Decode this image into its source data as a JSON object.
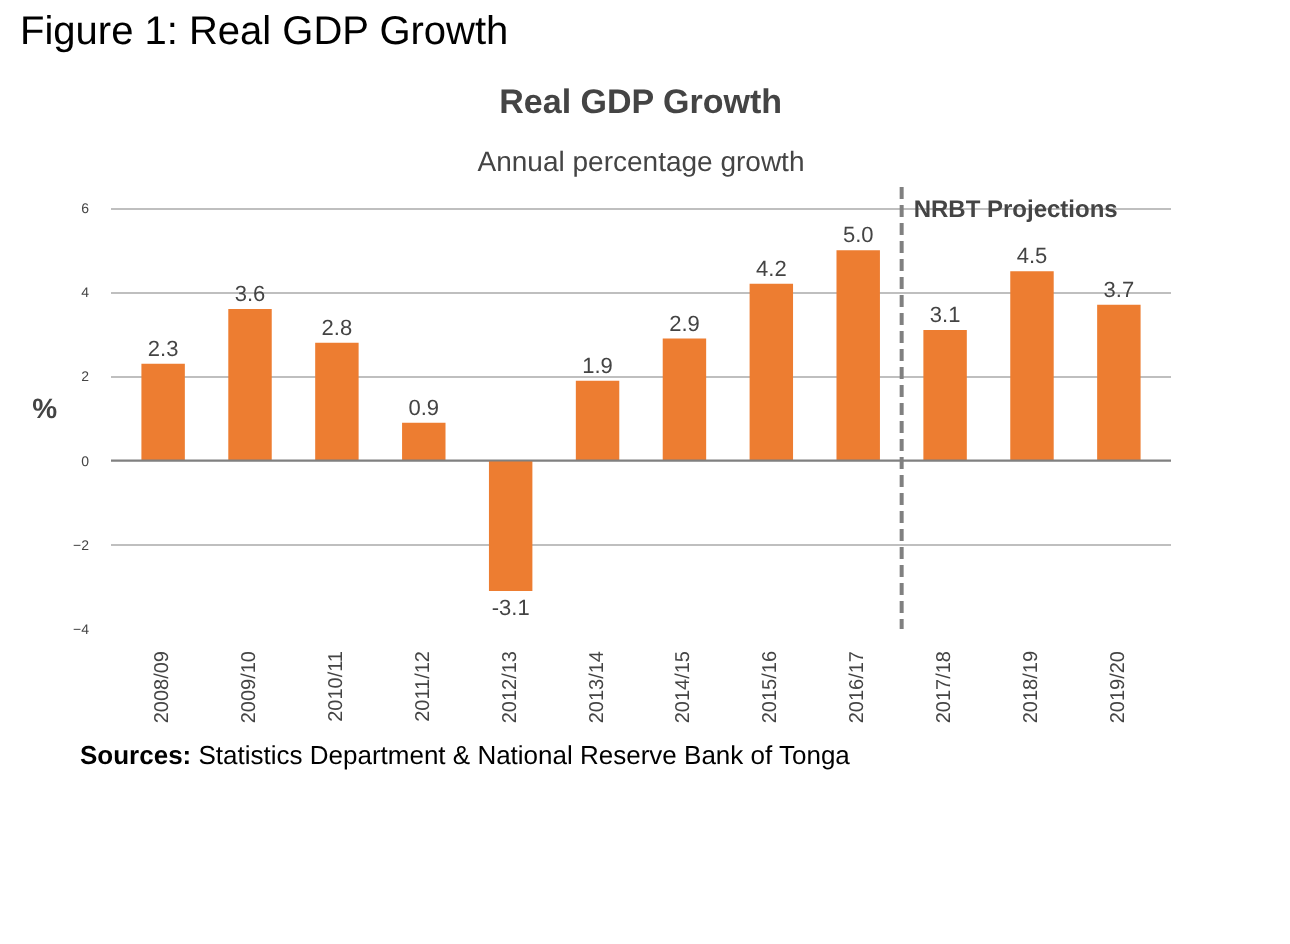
{
  "chart_data": {
    "type": "bar",
    "title": "Real GDP Growth",
    "subtitle": "Annual percentage growth",
    "ylabel": "%",
    "categories": [
      "2008/09",
      "2009/10",
      "2010/11",
      "2011/12",
      "2012/13",
      "2013/14",
      "2014/15",
      "2015/16",
      "2016/17",
      "2017/18",
      "2018/19",
      "2019/20"
    ],
    "values": [
      2.3,
      3.6,
      2.8,
      0.9,
      -3.1,
      1.9,
      2.9,
      4.2,
      5.0,
      3.1,
      4.5,
      3.7
    ],
    "value_labels": [
      "2.3",
      "3.6",
      "2.8",
      "0.9",
      "-3.1",
      "1.9",
      "2.9",
      "4.2",
      "5.0",
      "3.1",
      "4.5",
      "3.7"
    ],
    "color": "#ed7d31",
    "ylim": [
      -4,
      6.5
    ],
    "yticks": [
      -4,
      -2,
      0,
      2,
      4,
      6
    ],
    "grid": "y",
    "ref_lines": [
      {
        "axis": "x",
        "value": "2017/18",
        "label": "NRBT Projections",
        "color": "#808080",
        "line_style": "dashed"
      }
    ],
    "annotations": [
      "Figure 1: Real GDP Growth",
      "Sources: Statistics Department & National Reserve Bank of Tonga"
    ]
  }
}
